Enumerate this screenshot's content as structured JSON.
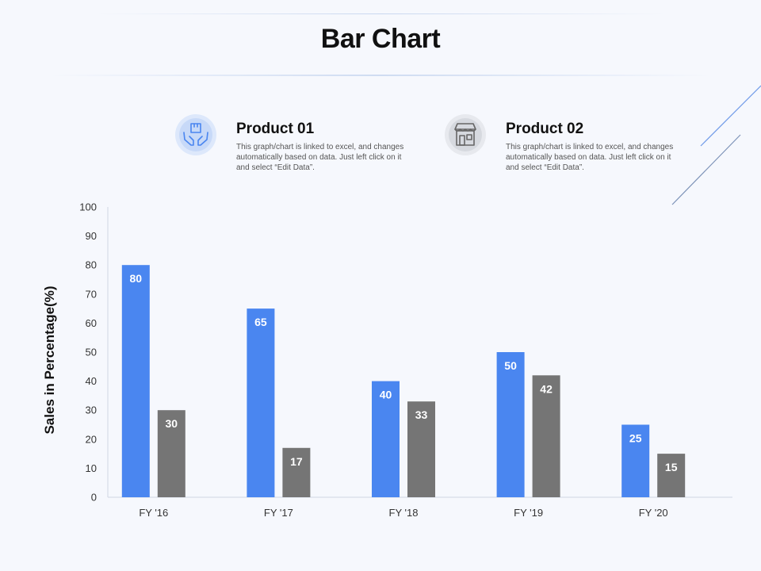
{
  "page": {
    "title": "Bar Chart"
  },
  "legend": [
    {
      "title": "Product 01",
      "text": "This graph/chart is linked to excel, and changes automatically based on data. Just left click on it and select “Edit Data”.",
      "icon": "hands-box-icon",
      "color": "#4a86f0"
    },
    {
      "title": "Product 02",
      "text": "This graph/chart is linked to excel, and changes automatically based on data. Just left click on it and select “Edit Data”.",
      "icon": "storefront-icon",
      "color": "#757575"
    }
  ],
  "chart_data": {
    "type": "bar",
    "title": "",
    "xlabel": "",
    "ylabel": "Sales in Percentage(%)",
    "ylim": [
      0,
      100
    ],
    "yticks": [
      0,
      10,
      20,
      30,
      40,
      50,
      60,
      70,
      80,
      90,
      100
    ],
    "categories": [
      "FY '16",
      "FY '17",
      "FY '18",
      "FY '19",
      "FY '20"
    ],
    "grid": false,
    "series": [
      {
        "name": "Product 01",
        "color": "#4a86f0",
        "values": [
          80,
          65,
          40,
          50,
          25
        ]
      },
      {
        "name": "Product 02",
        "color": "#757575",
        "values": [
          30,
          17,
          33,
          42,
          15
        ]
      }
    ]
  }
}
